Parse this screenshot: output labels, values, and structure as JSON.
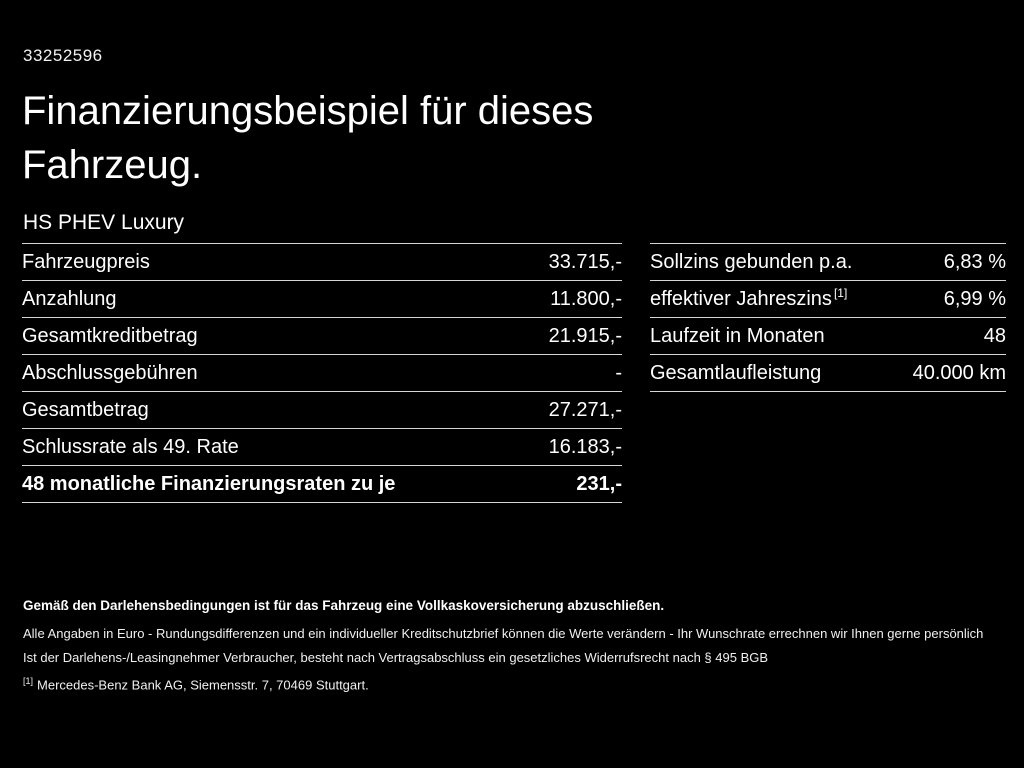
{
  "page": {
    "doc_id": "33252596",
    "title_line1": "Finanzierungsbeispiel für dieses",
    "title_line2": "Fahrzeug.",
    "model": "HS PHEV Luxury"
  },
  "colors": {
    "background": "#000000",
    "text": "#ffffff",
    "divider": "#d6d6d6"
  },
  "left_table": {
    "rows": [
      {
        "label": "Fahrzeugpreis",
        "value": "33.715,-"
      },
      {
        "label": "Anzahlung",
        "value": "11.800,-"
      },
      {
        "label": "Gesamtkreditbetrag",
        "value": "21.915,-"
      },
      {
        "label": "Abschlussgebühren",
        "value": "-"
      },
      {
        "label": "Gesamtbetrag",
        "value": "27.271,-"
      },
      {
        "label": "Schlussrate als 49. Rate",
        "value": "16.183,-"
      },
      {
        "label": "48 monatliche Finanzierungsraten zu je",
        "value": "231,-"
      }
    ]
  },
  "right_table": {
    "rows": [
      {
        "label": "Sollzins gebunden p.a.",
        "sup": "",
        "value": "6,83 %"
      },
      {
        "label": "effektiver Jahreszins",
        "sup": "[1]",
        "value": "6,99 %"
      },
      {
        "label": "Laufzeit in Monaten",
        "sup": "",
        "value": "48"
      },
      {
        "label": "Gesamtlaufleistung",
        "sup": "",
        "value": "40.000 km"
      }
    ]
  },
  "footer": {
    "insurance_note": "Gemäß den Darlehensbedingungen ist für das Fahrzeug eine Vollkaskoversicherung abzuschließen.",
    "line1": "Alle Angaben in Euro - Rundungsdifferenzen und ein individueller Kreditschutzbrief können die Werte verändern - Ihr Wunschrate errechnen wir Ihnen gerne persönlich",
    "line2": "Ist der Darlehens-/Leasingnehmer Verbraucher, besteht nach Vertragsabschluss ein gesetzliches Widerrufsrecht nach § 495 BGB",
    "ref_marker": "[1]",
    "ref_text": "Mercedes-Benz Bank AG, Siemensstr. 7, 70469 Stuttgart."
  }
}
